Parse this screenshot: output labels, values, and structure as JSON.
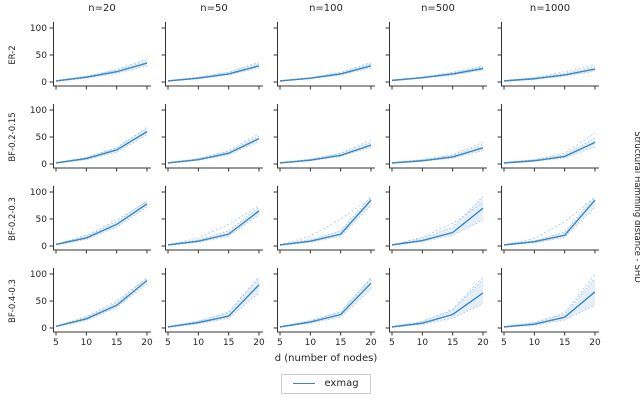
{
  "figure": {
    "xlabel": "d (number of nodes)",
    "ylabel_right": "Structural Hamming distance - SHD",
    "legend_label": "exmag"
  },
  "colors": {
    "mean_line": "#3a87c6",
    "band_fill": "#dce9f5",
    "band_edge_dotted": "#9cc3e5",
    "ref_dotted": "#a9cde9",
    "axis": "#333333",
    "legend_border": "#cccccc"
  },
  "chart_data": {
    "type": "line",
    "layout": "small-multiples 4 rows x 5 cols, shared axes",
    "title": "",
    "xlabel": "d (number of nodes)",
    "ylabel": "Structural Hamming distance - SHD",
    "x": [
      5,
      10,
      15,
      20
    ],
    "xticks": [
      5,
      10,
      15,
      20
    ],
    "yticks": [
      0,
      50,
      100
    ],
    "ylim": [
      0,
      100
    ],
    "legend_position": "bottom-center",
    "series_name": "exmag",
    "columns": [
      "n=20",
      "n=50",
      "n=100",
      "n=500",
      "n=1000"
    ],
    "rows": [
      "ER-2",
      "BF-0.2-0.15",
      "BF-0.2-0.3",
      "BF-0.4-0.3"
    ],
    "panels": [
      {
        "row": "ER-2",
        "col": "n=20",
        "mean": [
          2,
          9,
          19,
          35
        ],
        "lo": [
          1,
          7,
          16,
          30
        ],
        "hi": [
          3,
          11,
          22,
          40
        ],
        "ref": [
          2,
          10,
          23,
          43
        ]
      },
      {
        "row": "ER-2",
        "col": "n=50",
        "mean": [
          2,
          7,
          15,
          30
        ],
        "lo": [
          1,
          6,
          13,
          26
        ],
        "hi": [
          3,
          9,
          18,
          34
        ],
        "ref": [
          2,
          9,
          18,
          37
        ]
      },
      {
        "row": "ER-2",
        "col": "n=100",
        "mean": [
          2,
          7,
          15,
          30
        ],
        "lo": [
          1,
          6,
          13,
          26
        ],
        "hi": [
          3,
          8,
          17,
          34
        ],
        "ref": [
          2,
          8,
          18,
          36
        ]
      },
      {
        "row": "ER-2",
        "col": "n=500",
        "mean": [
          3,
          8,
          15,
          25
        ],
        "lo": [
          2,
          7,
          13,
          22
        ],
        "hi": [
          4,
          9,
          17,
          28
        ],
        "ref": [
          3,
          9,
          18,
          30
        ]
      },
      {
        "row": "ER-2",
        "col": "n=1000",
        "mean": [
          2,
          6,
          13,
          24
        ],
        "lo": [
          1,
          5,
          11,
          20
        ],
        "hi": [
          3,
          8,
          16,
          28
        ],
        "ref": [
          2,
          8,
          19,
          32
        ]
      },
      {
        "row": "BF-0.2-0.15",
        "col": "n=20",
        "mean": [
          2,
          10,
          26,
          60
        ],
        "lo": [
          1,
          8,
          22,
          54
        ],
        "hi": [
          3,
          12,
          30,
          66
        ],
        "ref": [
          2,
          12,
          30,
          68
        ]
      },
      {
        "row": "BF-0.2-0.15",
        "col": "n=50",
        "mean": [
          2,
          8,
          20,
          47
        ],
        "lo": [
          1,
          7,
          17,
          42
        ],
        "hi": [
          3,
          10,
          23,
          52
        ],
        "ref": [
          2,
          10,
          25,
          56
        ]
      },
      {
        "row": "BF-0.2-0.15",
        "col": "n=100",
        "mean": [
          2,
          7,
          16,
          35
        ],
        "lo": [
          1,
          6,
          14,
          31
        ],
        "hi": [
          3,
          9,
          19,
          40
        ],
        "ref": [
          2,
          9,
          20,
          44
        ]
      },
      {
        "row": "BF-0.2-0.15",
        "col": "n=500",
        "mean": [
          2,
          6,
          13,
          30
        ],
        "lo": [
          1,
          5,
          11,
          25
        ],
        "hi": [
          3,
          8,
          16,
          36
        ],
        "ref": [
          2,
          8,
          17,
          40
        ]
      },
      {
        "row": "BF-0.2-0.15",
        "col": "n=1000",
        "mean": [
          2,
          6,
          14,
          40
        ],
        "lo": [
          1,
          5,
          11,
          32
        ],
        "hi": [
          3,
          8,
          17,
          48
        ],
        "ref": [
          2,
          8,
          20,
          57
        ]
      },
      {
        "row": "BF-0.2-0.3",
        "col": "n=20",
        "mean": [
          3,
          15,
          40,
          78
        ],
        "lo": [
          2,
          12,
          35,
          72
        ],
        "hi": [
          4,
          18,
          45,
          84
        ],
        "ref": [
          3,
          20,
          48,
          82
        ]
      },
      {
        "row": "BF-0.2-0.3",
        "col": "n=50",
        "mean": [
          2,
          9,
          22,
          65
        ],
        "lo": [
          1,
          7,
          18,
          58
        ],
        "hi": [
          3,
          11,
          28,
          72
        ],
        "ref": [
          2,
          15,
          40,
          75
        ]
      },
      {
        "row": "BF-0.2-0.3",
        "col": "n=100",
        "mean": [
          2,
          9,
          22,
          85
        ],
        "lo": [
          1,
          7,
          18,
          75
        ],
        "hi": [
          3,
          12,
          28,
          92
        ],
        "ref": [
          2,
          18,
          50,
          88
        ]
      },
      {
        "row": "BF-0.2-0.3",
        "col": "n=500",
        "mean": [
          2,
          10,
          25,
          70
        ],
        "lo": [
          1,
          8,
          20,
          48
        ],
        "hi": [
          3,
          14,
          35,
          92
        ],
        "ref": [
          2,
          16,
          42,
          80
        ]
      },
      {
        "row": "BF-0.2-0.3",
        "col": "n=1000",
        "mean": [
          2,
          8,
          20,
          85
        ],
        "lo": [
          1,
          6,
          16,
          72
        ],
        "hi": [
          3,
          10,
          26,
          92
        ],
        "ref": [
          2,
          14,
          45,
          90
        ]
      },
      {
        "row": "BF-0.4-0.3",
        "col": "n=20",
        "mean": [
          3,
          17,
          42,
          88
        ],
        "lo": [
          2,
          14,
          38,
          82
        ],
        "hi": [
          4,
          20,
          47,
          93
        ],
        "ref": [
          3,
          21,
          50,
          92
        ]
      },
      {
        "row": "BF-0.4-0.3",
        "col": "n=50",
        "mean": [
          2,
          10,
          22,
          80
        ],
        "lo": [
          1,
          8,
          18,
          65
        ],
        "hi": [
          3,
          13,
          28,
          93
        ],
        "ref": [
          2,
          12,
          30,
          95
        ]
      },
      {
        "row": "BF-0.4-0.3",
        "col": "n=100",
        "mean": [
          2,
          11,
          25,
          83
        ],
        "lo": [
          1,
          9,
          20,
          72
        ],
        "hi": [
          3,
          14,
          30,
          93
        ],
        "ref": [
          2,
          13,
          30,
          90
        ]
      },
      {
        "row": "BF-0.4-0.3",
        "col": "n=500",
        "mean": [
          2,
          9,
          25,
          65
        ],
        "lo": [
          1,
          7,
          18,
          45
        ],
        "hi": [
          3,
          12,
          33,
          90
        ],
        "ref": [
          2,
          12,
          35,
          95
        ]
      },
      {
        "row": "BF-0.4-0.3",
        "col": "n=1000",
        "mean": [
          2,
          7,
          20,
          67
        ],
        "lo": [
          1,
          5,
          15,
          42
        ],
        "hi": [
          3,
          10,
          26,
          92
        ],
        "ref": [
          2,
          10,
          28,
          100
        ]
      }
    ]
  }
}
